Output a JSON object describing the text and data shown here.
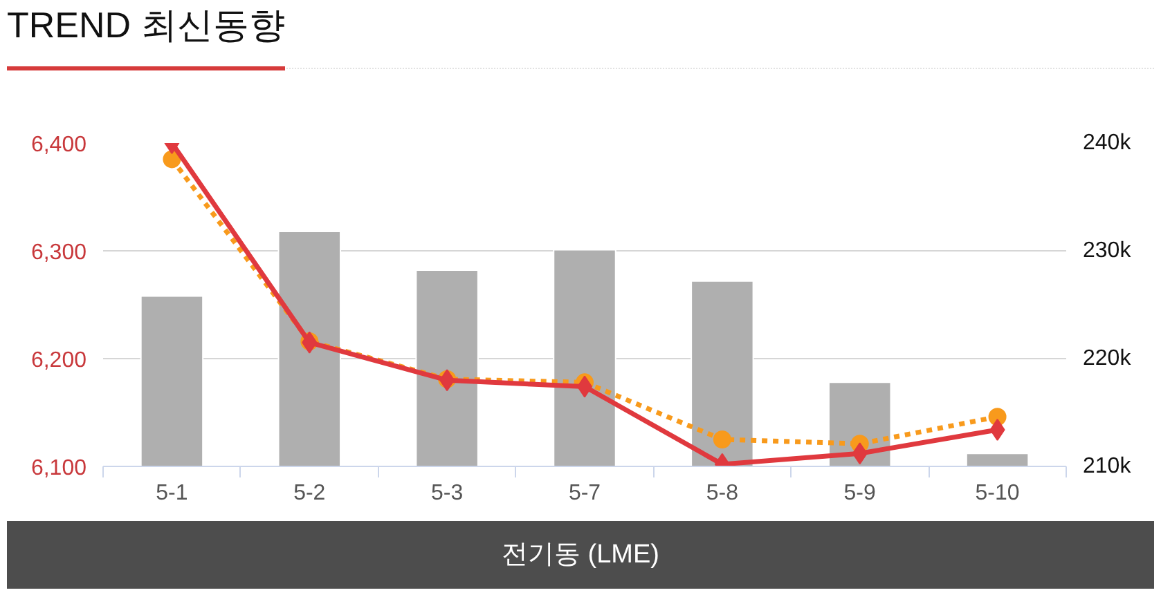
{
  "chart_data": {
    "type": "bar",
    "title": "TREND 최신동향",
    "annotations": [
      "전기동 (LME)"
    ],
    "categories": [
      "5-1",
      "5-2",
      "5-3",
      "5-7",
      "5-8",
      "5-9",
      "5-10"
    ],
    "series": [
      {
        "axis": "y2",
        "color": "#afafaf",
        "values": [
          225800,
          231800,
          228200,
          230100,
          227200,
          217800,
          211200
        ]
      },
      {
        "type": "line",
        "color": "#f89a1c",
        "marker": "circle",
        "line_style": "dotted",
        "values": [
          6385,
          6216,
          6181,
          6178,
          6125,
          6121,
          6146
        ]
      },
      {
        "type": "line",
        "color": "#e0393e",
        "marker": "diamond",
        "line_style": "solid",
        "values": [
          6400,
          6215,
          6180,
          6174,
          6102,
          6112,
          6134
        ]
      }
    ],
    "ylim": [
      6100,
      6400
    ],
    "yticks": [
      {
        "value": 6100,
        "label": "6,100"
      },
      {
        "value": 6200,
        "label": "6,200"
      },
      {
        "value": 6300,
        "label": "6,300"
      },
      {
        "value": 6400,
        "label": "6,400"
      }
    ],
    "y2lim": [
      210000,
      240000
    ],
    "y2ticks": [
      {
        "value": 210000,
        "label": "210k"
      },
      {
        "value": 220000,
        "label": "220k"
      },
      {
        "value": 230000,
        "label": "230k"
      },
      {
        "value": 240000,
        "label": "240k"
      }
    ],
    "grid": "y"
  }
}
